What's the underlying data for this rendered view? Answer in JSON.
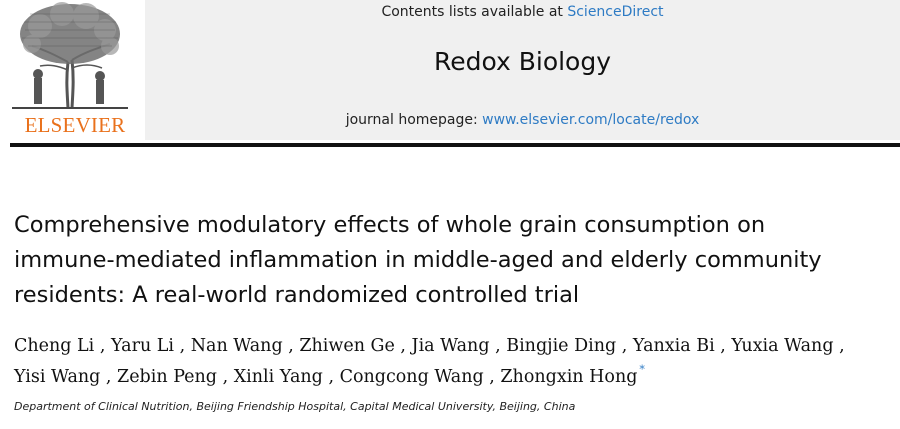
{
  "masthead": {
    "publisher_logo_text": "ELSEVIER",
    "contents_prefix": "Contents lists available at ",
    "contents_link": "ScienceDirect",
    "journal_title": "Redox Biology",
    "homepage_prefix": "journal homepage: ",
    "homepage_link": "www.elsevier.com/locate/redox",
    "colors": {
      "logo_orange": "#e9711c",
      "link_blue": "#2e7bc4",
      "banner_gray": "#f0f0f0"
    }
  },
  "article": {
    "title_lines": [
      "Comprehensive modulatory effects of whole grain consumption on",
      "immune-mediated inflammation in middle-aged and elderly community",
      "residents: A real-world randomized controlled trial"
    ],
    "authors_line1": "Cheng Li , Yaru Li , Nan Wang , Zhiwen Ge , Jia Wang , Bingjie Ding , Yanxia Bi , Yuxia Wang ,",
    "authors_line2": "Yisi Wang , Zebin Peng , Xinli Yang , Congcong Wang , Zhongxin Hong",
    "corresponding_mark": "*",
    "affiliation": "Department of Clinical Nutrition, Beijing Friendship Hospital, Capital Medical University, Beijing, China"
  }
}
